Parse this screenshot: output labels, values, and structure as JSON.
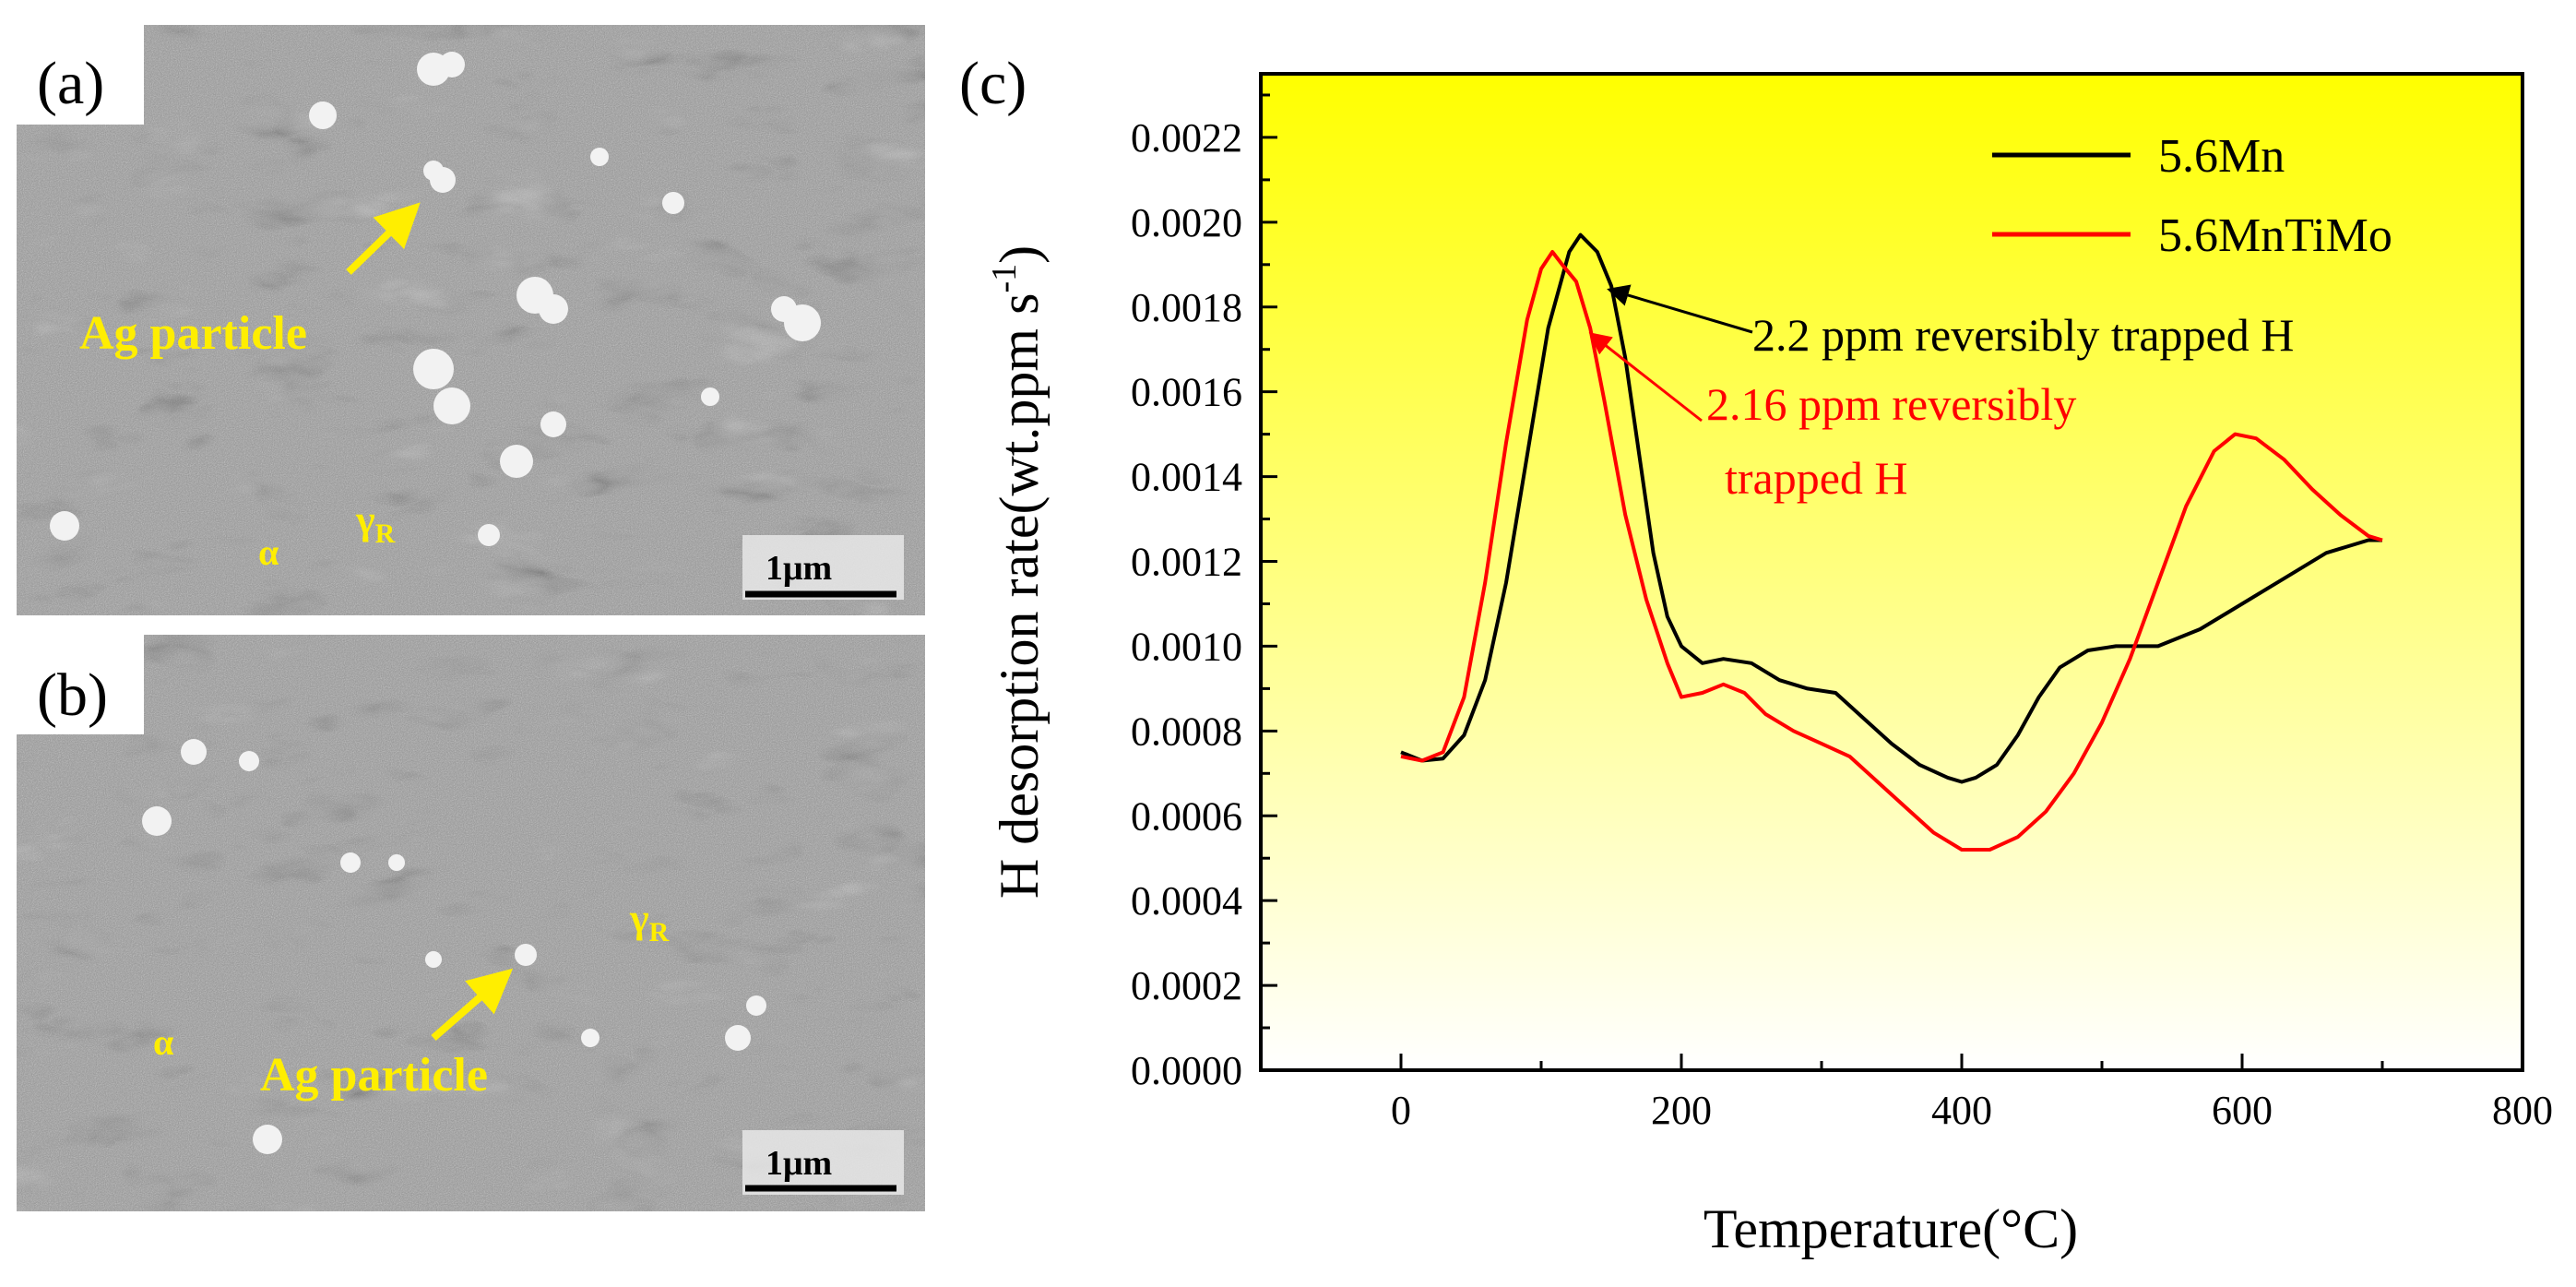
{
  "panels": {
    "a": {
      "label": "(a)",
      "arrow_label": "Ag particle",
      "alpha": "α",
      "gamma": "γ",
      "gamma_sub": "R",
      "scale_bar": "1μm"
    },
    "b": {
      "label": "(b)",
      "arrow_label": "Ag particle",
      "alpha": "α",
      "gamma": "γ",
      "gamma_sub": "R",
      "scale_bar": "1μm"
    }
  },
  "chart_data": {
    "panel_label": "(c)",
    "type": "line",
    "xlabel": "Temperature(°C)",
    "ylabel_main": "H desorption rate(wt.ppm s",
    "ylabel_sup": "-1",
    "ylabel_end": ")",
    "xlim": [
      -100,
      800
    ],
    "ylim": [
      0.0,
      0.00235
    ],
    "xticks": [
      0,
      200,
      400,
      600,
      800
    ],
    "xtick_labels": [
      "0",
      "200",
      "400",
      "600",
      "800"
    ],
    "yticks": [
      0.0,
      0.0002,
      0.0004,
      0.0006,
      0.0008,
      0.001,
      0.0012,
      0.0014,
      0.0016,
      0.0018,
      0.002,
      0.0022
    ],
    "ytick_labels": [
      "0.0000",
      "0.0002",
      "0.0004",
      "0.0006",
      "0.0008",
      "0.0010",
      "0.0012",
      "0.0014",
      "0.0016",
      "0.0018",
      "0.0020",
      "0.0022"
    ],
    "background_gradient": [
      "#ffff00",
      "#ffffff"
    ],
    "legend_position": "top-right",
    "series": [
      {
        "name": "5.6Mn",
        "color": "#000000",
        "x": [
          0,
          15,
          30,
          45,
          60,
          75,
          90,
          105,
          120,
          128,
          140,
          150,
          160,
          170,
          180,
          190,
          200,
          215,
          230,
          250,
          270,
          290,
          310,
          330,
          350,
          370,
          390,
          400,
          410,
          425,
          440,
          455,
          470,
          490,
          510,
          540,
          570,
          600,
          630,
          660,
          690,
          700
        ],
        "y": [
          0.00075,
          0.00073,
          0.000735,
          0.00079,
          0.00092,
          0.00115,
          0.00145,
          0.00175,
          0.00193,
          0.00197,
          0.00193,
          0.00185,
          0.00168,
          0.00145,
          0.00122,
          0.00107,
          0.001,
          0.00096,
          0.00097,
          0.00096,
          0.00092,
          0.0009,
          0.00089,
          0.00083,
          0.00077,
          0.00072,
          0.00069,
          0.00068,
          0.00069,
          0.00072,
          0.00079,
          0.00088,
          0.00095,
          0.00099,
          0.001,
          0.001,
          0.00104,
          0.0011,
          0.00116,
          0.00122,
          0.00125,
          0.00125
        ]
      },
      {
        "name": "5.6MnTiMo",
        "color": "#ff0000",
        "x": [
          0,
          15,
          30,
          45,
          60,
          75,
          90,
          100,
          108,
          115,
          125,
          135,
          145,
          160,
          175,
          190,
          200,
          215,
          230,
          245,
          260,
          280,
          300,
          320,
          340,
          360,
          380,
          400,
          420,
          440,
          460,
          480,
          500,
          520,
          540,
          560,
          580,
          595,
          610,
          630,
          650,
          670,
          690,
          700
        ],
        "y": [
          0.00074,
          0.00073,
          0.00075,
          0.00088,
          0.00115,
          0.00148,
          0.00177,
          0.00189,
          0.00193,
          0.0019,
          0.00186,
          0.00175,
          0.00158,
          0.00131,
          0.00111,
          0.00096,
          0.00088,
          0.00089,
          0.00091,
          0.00089,
          0.00084,
          0.0008,
          0.00077,
          0.00074,
          0.00068,
          0.00062,
          0.00056,
          0.00052,
          0.00052,
          0.00055,
          0.00061,
          0.0007,
          0.00082,
          0.00097,
          0.00115,
          0.00133,
          0.00146,
          0.0015,
          0.00149,
          0.00144,
          0.00137,
          0.00131,
          0.00126,
          0.00125
        ]
      }
    ],
    "annotations": [
      {
        "text": "2.2 ppm reversibly trapped H",
        "color": "#000000",
        "target": [
          132,
          0.00186
        ]
      },
      {
        "line1": "2.16 ppm reversibly",
        "line2": "trapped H",
        "color": "#ff0000",
        "target": [
          118,
          0.00173
        ]
      }
    ]
  }
}
